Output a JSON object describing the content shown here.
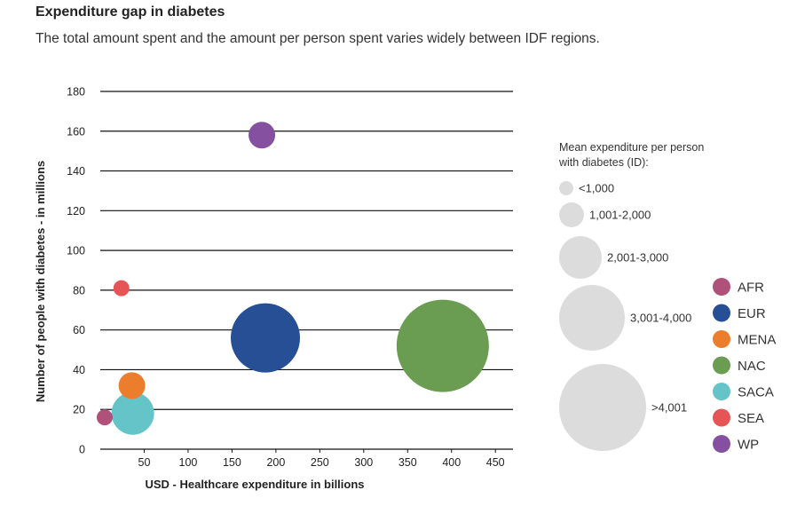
{
  "chart_data": {
    "type": "scatter",
    "title": "Expenditure gap in diabetes",
    "subtitle": "The total amount spent and the amount per person spent varies widely between IDF regions.",
    "xlabel": "USD - Healthcare expenditure in billions",
    "ylabel": "Number of people with diabetes - in millions",
    "xlim": [
      0,
      470
    ],
    "ylim": [
      0,
      180
    ],
    "xticks": [
      50,
      100,
      150,
      200,
      250,
      300,
      350,
      400,
      450
    ],
    "yticks": [
      0,
      20,
      40,
      60,
      80,
      100,
      120,
      140,
      160,
      180
    ],
    "grid": true,
    "legend_position": "right",
    "size_legend": {
      "title_lines": [
        "Mean expenditure per person",
        "with diabetes (ID):"
      ],
      "items": [
        {
          "label": "<1,000",
          "size_rank": 1
        },
        {
          "label": "1,001-2,000",
          "size_rank": 2
        },
        {
          "label": "2,001-3,000",
          "size_rank": 3
        },
        {
          "label": "3,001-4,000",
          "size_rank": 4
        },
        {
          "label": ">4,001",
          "size_rank": 5
        }
      ]
    },
    "series": [
      {
        "name": "AFR",
        "color": "#b0517a",
        "x": 5,
        "y": 16,
        "size_rank": 1
      },
      {
        "name": "EUR",
        "color": "#264f95",
        "x": 188,
        "y": 56,
        "size_rank": 4
      },
      {
        "name": "MENA",
        "color": "#ec7d2c",
        "x": 36,
        "y": 32,
        "size_rank": 2
      },
      {
        "name": "NAC",
        "color": "#6a9c52",
        "x": 390,
        "y": 52,
        "size_rank": 5
      },
      {
        "name": "SACA",
        "color": "#65c4c8",
        "x": 37,
        "y": 18,
        "size_rank": 3
      },
      {
        "name": "SEA",
        "color": "#e75456",
        "x": 24,
        "y": 81,
        "size_rank": 1
      },
      {
        "name": "WP",
        "color": "#8650a0",
        "x": 184,
        "y": 158,
        "size_rank": 2
      }
    ],
    "size_legend_color": "#dcdcdc"
  }
}
